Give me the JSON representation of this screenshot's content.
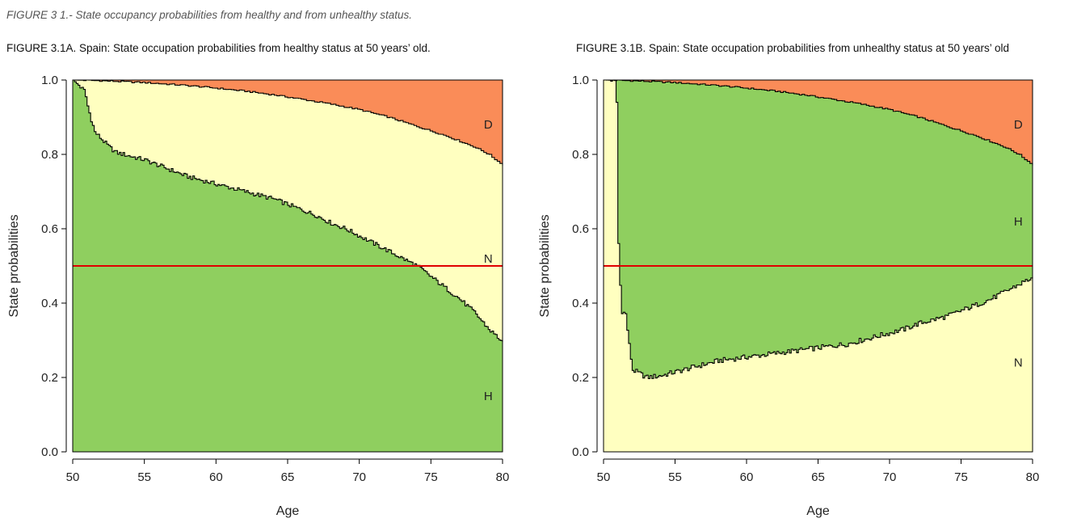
{
  "figure_title": "FIGURE 3 1.- State occupancy probabilities from healthy and from unhealthy status.",
  "colors": {
    "H": "#8fcf5f",
    "N": "#ffffc0",
    "D": "#fa8c58",
    "reference_line": "#e00000"
  },
  "chart_data": [
    {
      "type": "area",
      "title": "FIGURE 3.1A. Spain: State occupation probabilities from healthy status at 50 years’ old.",
      "xlabel": "Age",
      "ylabel": "State probabilities",
      "xlim": [
        50,
        80
      ],
      "ylim": [
        0,
        1
      ],
      "x_ticks": [
        "50",
        "55",
        "60",
        "65",
        "70",
        "75",
        "80"
      ],
      "y_ticks": [
        "0.0",
        "0.2",
        "0.4",
        "0.6",
        "0.8",
        "1.0"
      ],
      "reference_line": 0.5,
      "stack_order": [
        "H",
        "N",
        "D"
      ],
      "series": [
        {
          "name": "H",
          "label_at": {
            "x": 79,
            "y": 0.15
          }
        },
        {
          "name": "N",
          "label_at": {
            "x": 79,
            "y": 0.52
          }
        },
        {
          "name": "D",
          "label_at": {
            "x": 79,
            "y": 0.88
          }
        }
      ],
      "boundaries": [
        {
          "between": [
            "H",
            "N"
          ],
          "x": [
            50,
            50.8,
            51,
            51.2,
            51.5,
            52,
            52.5,
            53,
            54,
            55,
            56,
            57,
            58,
            59,
            60,
            61,
            62,
            63,
            64,
            65,
            66,
            67,
            68,
            69,
            70,
            71,
            72,
            73,
            74,
            75,
            76,
            77,
            78,
            79,
            80
          ],
          "y": [
            1.0,
            0.97,
            0.93,
            0.9,
            0.86,
            0.84,
            0.82,
            0.805,
            0.795,
            0.785,
            0.77,
            0.755,
            0.74,
            0.73,
            0.72,
            0.71,
            0.7,
            0.69,
            0.68,
            0.665,
            0.65,
            0.635,
            0.615,
            0.6,
            0.58,
            0.56,
            0.54,
            0.52,
            0.5,
            0.47,
            0.44,
            0.41,
            0.375,
            0.33,
            0.295
          ]
        },
        {
          "between": [
            "N",
            "D"
          ],
          "x": [
            50,
            52,
            55,
            58,
            60,
            62,
            64,
            66,
            68,
            70,
            72,
            74,
            76,
            78,
            79,
            80
          ],
          "y": [
            1.0,
            0.998,
            0.993,
            0.985,
            0.978,
            0.97,
            0.96,
            0.948,
            0.935,
            0.92,
            0.9,
            0.875,
            0.85,
            0.82,
            0.8,
            0.77
          ]
        }
      ]
    },
    {
      "type": "area",
      "title": "FIGURE 3.1B. Spain: State occupation probabilities from unhealthy status at 50 years’ old",
      "xlabel": "Age",
      "ylabel": "State probabilities",
      "xlim": [
        50,
        80
      ],
      "ylim": [
        0,
        1
      ],
      "x_ticks": [
        "50",
        "55",
        "60",
        "65",
        "70",
        "75",
        "80"
      ],
      "y_ticks": [
        "0.0",
        "0.2",
        "0.4",
        "0.6",
        "0.8",
        "1.0"
      ],
      "reference_line": 0.5,
      "stack_order": [
        "N",
        "H",
        "D"
      ],
      "series": [
        {
          "name": "N",
          "label_at": {
            "x": 79,
            "y": 0.24
          }
        },
        {
          "name": "H",
          "label_at": {
            "x": 79,
            "y": 0.62
          }
        },
        {
          "name": "D",
          "label_at": {
            "x": 79,
            "y": 0.88
          }
        }
      ],
      "boundaries": [
        {
          "between": [
            "N",
            "H"
          ],
          "x": [
            50,
            50.8,
            50.9,
            51.0,
            51.2,
            51.5,
            51.8,
            52,
            52.5,
            53,
            54,
            55,
            56,
            57,
            58,
            59,
            60,
            61,
            62,
            63,
            64,
            65,
            66,
            67,
            68,
            69,
            70,
            71,
            72,
            73,
            74,
            75,
            76,
            77,
            78,
            79,
            80
          ],
          "y": [
            1.0,
            1.0,
            0.92,
            0.56,
            0.38,
            0.37,
            0.27,
            0.22,
            0.21,
            0.2,
            0.205,
            0.215,
            0.225,
            0.235,
            0.245,
            0.25,
            0.255,
            0.26,
            0.265,
            0.27,
            0.275,
            0.28,
            0.285,
            0.29,
            0.3,
            0.31,
            0.32,
            0.33,
            0.345,
            0.355,
            0.365,
            0.38,
            0.395,
            0.41,
            0.43,
            0.45,
            0.47
          ]
        },
        {
          "between": [
            "H",
            "D"
          ],
          "x": [
            50,
            52,
            55,
            58,
            60,
            62,
            64,
            66,
            68,
            70,
            72,
            74,
            76,
            78,
            79,
            80
          ],
          "y": [
            1.0,
            0.998,
            0.993,
            0.985,
            0.978,
            0.97,
            0.96,
            0.948,
            0.935,
            0.92,
            0.9,
            0.875,
            0.85,
            0.82,
            0.8,
            0.77
          ]
        }
      ]
    }
  ]
}
